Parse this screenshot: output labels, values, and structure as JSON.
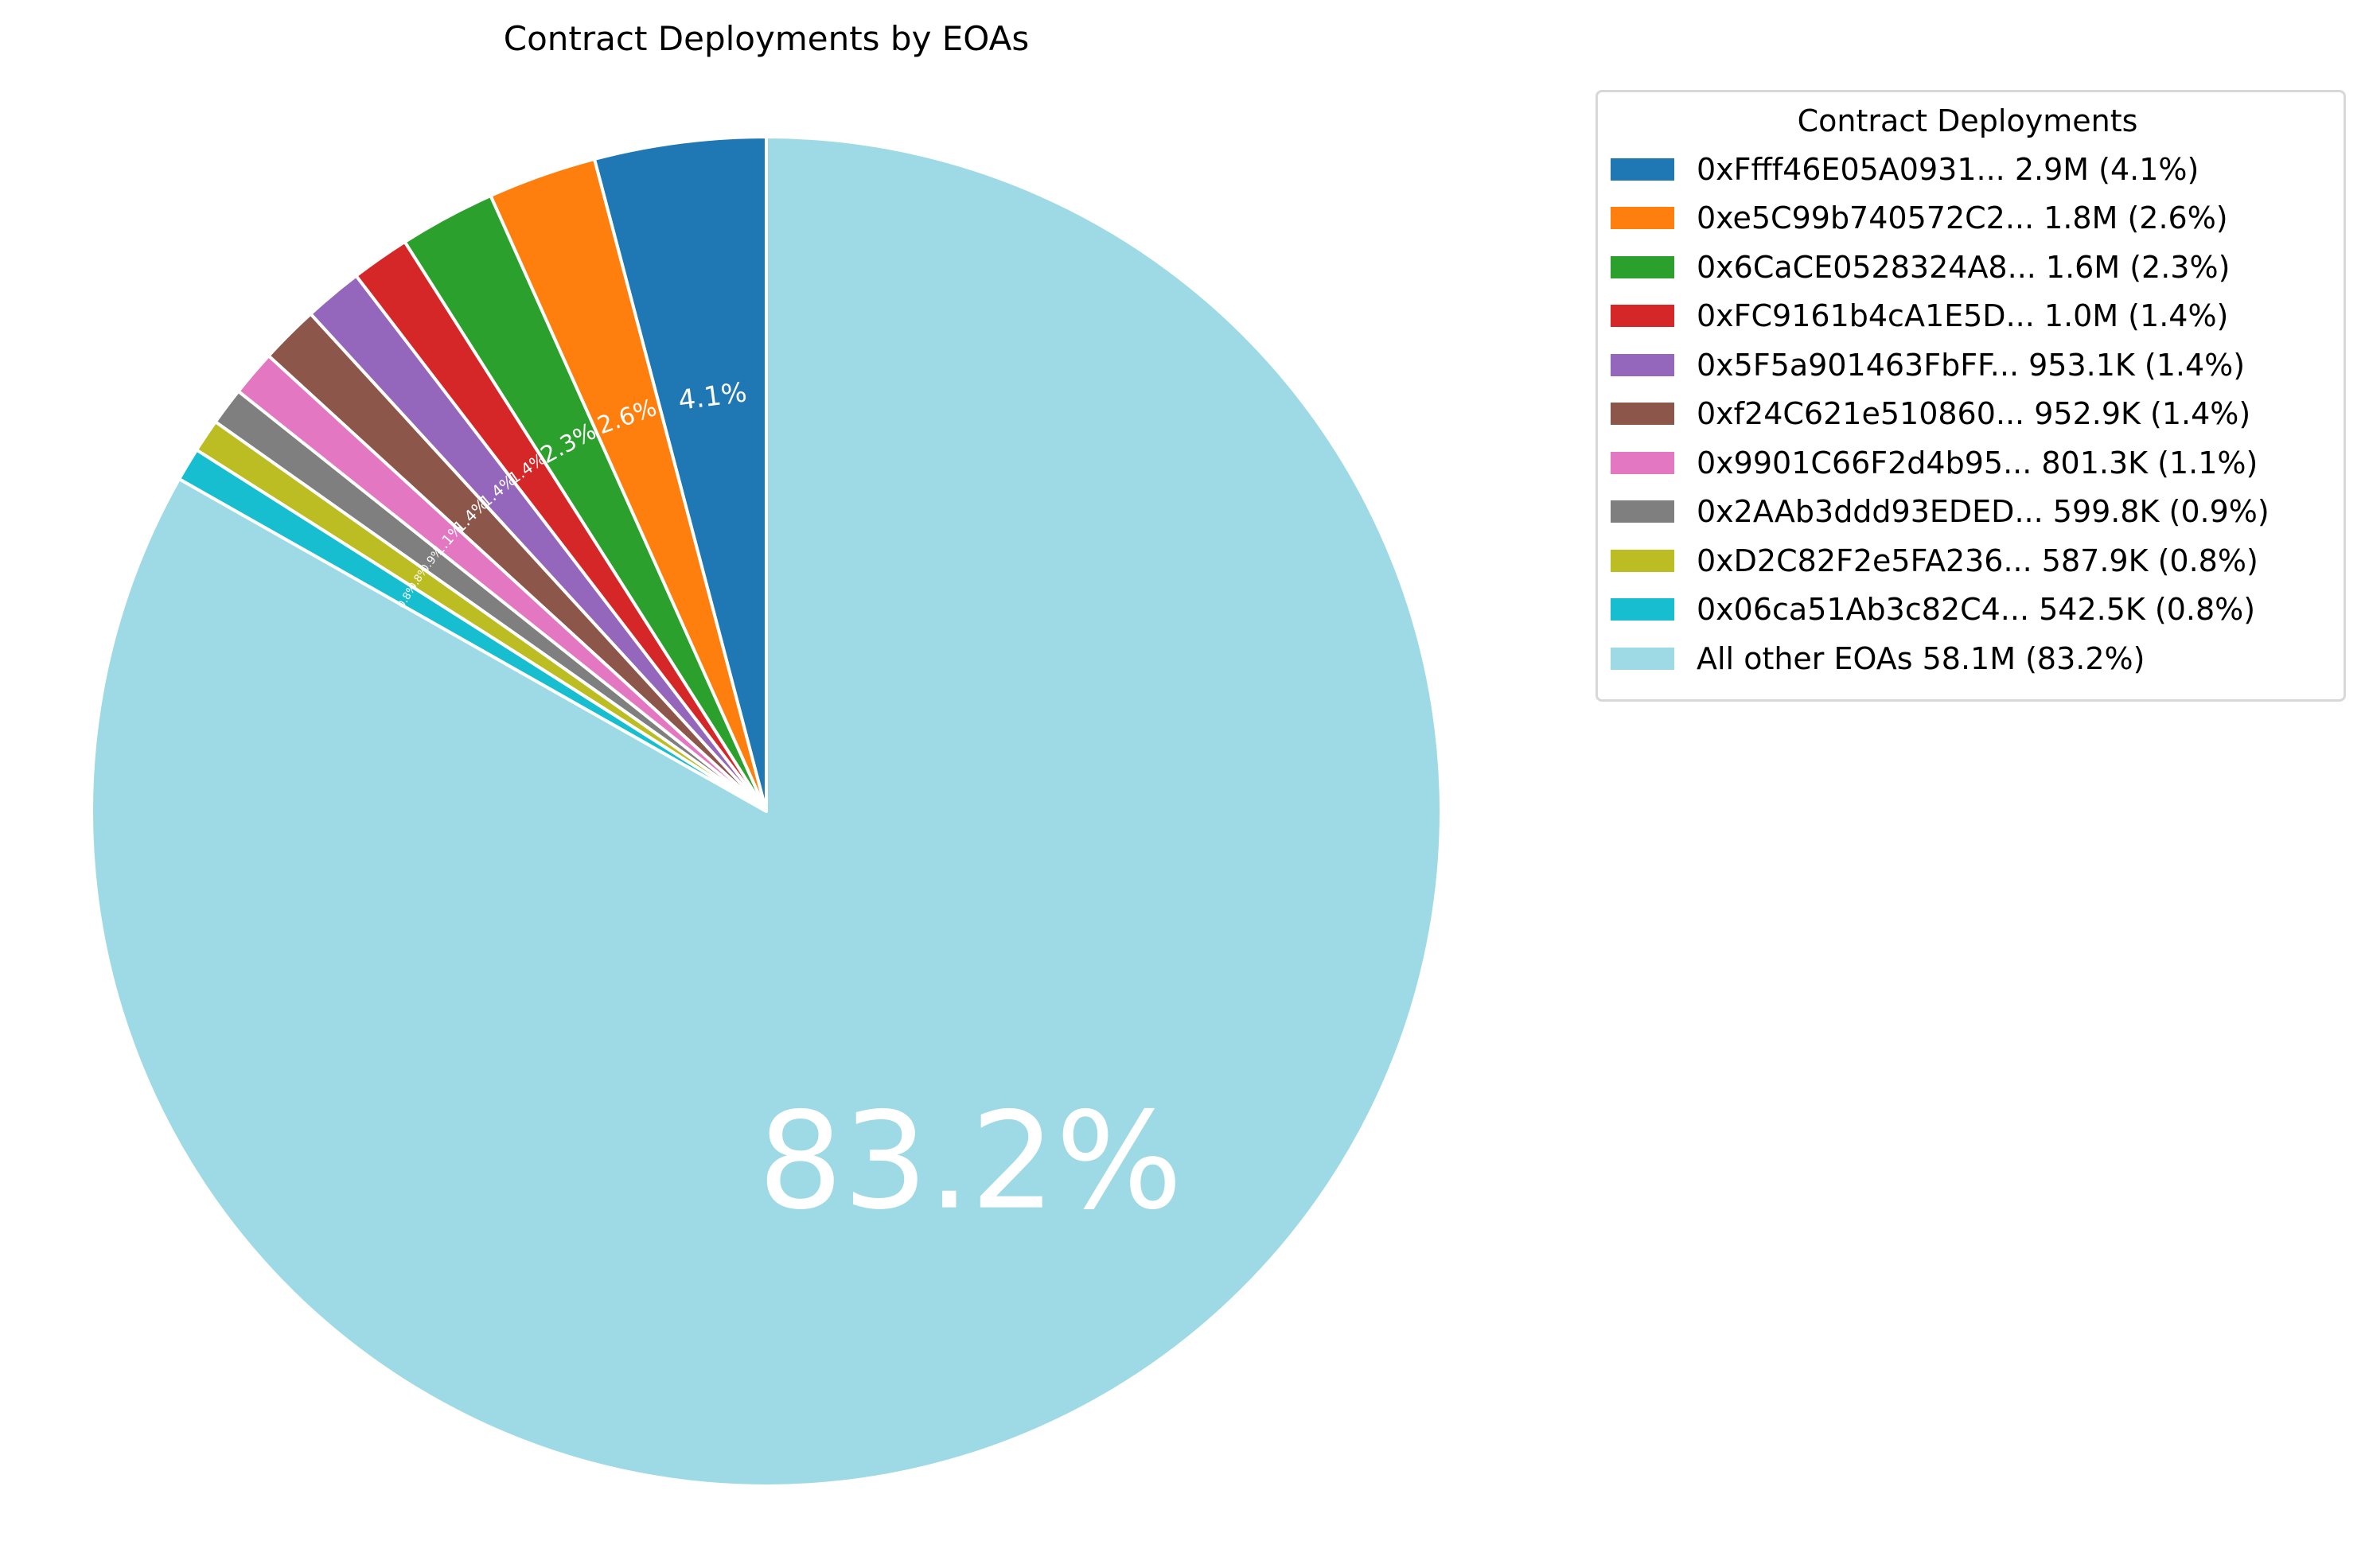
{
  "chart_data": {
    "type": "pie",
    "title": "Contract Deployments by EOAs",
    "legend_title": "Contract Deployments",
    "legend_position": "upper-right-outside",
    "start_angle_deg": 90,
    "direction": "counterclockwise",
    "slice_edge_color": "#ffffff",
    "slices": [
      {
        "address": "0xFfff46E05A0931...",
        "value_text": "2.9M",
        "value": 2.9,
        "percent": 4.1,
        "color": "#1f77b4",
        "legend": "0xFfff46E05A0931... 2.9M (4.1%)",
        "label": "4.1%"
      },
      {
        "address": "0xe5C99b740572C2...",
        "value_text": "1.8M",
        "value": 1.8,
        "percent": 2.6,
        "color": "#ff7f0e",
        "legend": "0xe5C99b740572C2... 1.8M (2.6%)",
        "label": "2.6%"
      },
      {
        "address": "0x6CaCE0528324A8...",
        "value_text": "1.6M",
        "value": 1.6,
        "percent": 2.3,
        "color": "#2ca02c",
        "legend": "0x6CaCE0528324A8... 1.6M (2.3%)",
        "label": "2.3%"
      },
      {
        "address": "0xFC9161b4cA1E5D...",
        "value_text": "1.0M",
        "value": 1.0,
        "percent": 1.4,
        "color": "#d62728",
        "legend": "0xFC9161b4cA1E5D... 1.0M (1.4%)",
        "label": "1.4%"
      },
      {
        "address": "0x5F5a901463FbFF...",
        "value_text": "953.1K",
        "value": 0.9531,
        "percent": 1.4,
        "color": "#9467bd",
        "legend": "0x5F5a901463FbFF... 953.1K (1.4%)",
        "label": "1.4%"
      },
      {
        "address": "0xf24C621e510860...",
        "value_text": "952.9K",
        "value": 0.9529,
        "percent": 1.4,
        "color": "#8c564b",
        "legend": "0xf24C621e510860... 952.9K (1.4%)",
        "label": "1.4%"
      },
      {
        "address": "0x9901C66F2d4b95...",
        "value_text": "801.3K",
        "value": 0.8013,
        "percent": 1.1,
        "color": "#e377c2",
        "legend": "0x9901C66F2d4b95... 801.3K (1.1%)",
        "label": "1.1%"
      },
      {
        "address": "0x2AAb3ddd93EDED...",
        "value_text": "599.8K",
        "value": 0.5998,
        "percent": 0.9,
        "color": "#7f7f7f",
        "legend": "0x2AAb3ddd93EDED... 599.8K (0.9%)",
        "label": "0.9%"
      },
      {
        "address": "0xD2C82F2e5FA236...",
        "value_text": "587.9K",
        "value": 0.5879,
        "percent": 0.8,
        "color": "#bcbd22",
        "legend": "0xD2C82F2e5FA236... 587.9K (0.8%)",
        "label": "0.8%"
      },
      {
        "address": "0x06ca51Ab3c82C4...",
        "value_text": "542.5K",
        "value": 0.5425,
        "percent": 0.8,
        "color": "#17becf",
        "legend": "0x06ca51Ab3c82C4... 542.5K (0.8%)",
        "label": "0.8%"
      },
      {
        "address": "All other EOAs",
        "value_text": "58.1M",
        "value": 58.1,
        "percent": 83.2,
        "color": "#9edae5",
        "legend": "All other EOAs 58.1M (83.2%)",
        "label": "83.2%"
      }
    ]
  }
}
